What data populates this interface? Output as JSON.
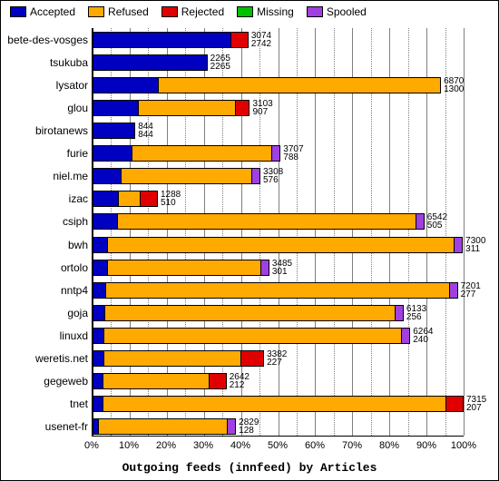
{
  "title": "Outgoing feeds (innfeed) by Articles",
  "colors": {
    "accepted": "#0000c0",
    "refused": "#ffaa00",
    "rejected": "#e00000",
    "missing": "#00c000",
    "spooled": "#a040e0",
    "grid": "#7f7f7f",
    "border": "#000000",
    "bg": "#ffffff"
  },
  "legend": [
    {
      "key": "accepted",
      "label": "Accepted"
    },
    {
      "key": "refused",
      "label": "Refused"
    },
    {
      "key": "rejected",
      "label": "Rejected"
    },
    {
      "key": "missing",
      "label": "Missing"
    },
    {
      "key": "spooled",
      "label": "Spooled"
    }
  ],
  "axis": {
    "x_title": "Outgoing feeds (innfeed) by Articles",
    "x_ticks_pct": [
      0,
      10,
      20,
      30,
      40,
      50,
      60,
      70,
      80,
      90,
      100
    ],
    "x_minor_pct": [
      5,
      15,
      25,
      35,
      45,
      55,
      65,
      75,
      85,
      95
    ],
    "x_tick_suffix": "%"
  },
  "bar_max": 7315,
  "rows": [
    {
      "name": "bete-des-vosges",
      "accepted": 2742,
      "refused": 0,
      "rejected": 332,
      "missing": 0,
      "spooled": 0,
      "label_top": 3074,
      "label_bot": 2742
    },
    {
      "name": "tsukuba",
      "accepted": 2265,
      "refused": 0,
      "rejected": 0,
      "missing": 0,
      "spooled": 0,
      "label_top": 2265,
      "label_bot": 2265
    },
    {
      "name": "lysator",
      "accepted": 1300,
      "refused": 5570,
      "rejected": 0,
      "missing": 0,
      "spooled": 0,
      "label_top": 6870,
      "label_bot": 1300
    },
    {
      "name": "glou",
      "accepted": 907,
      "refused": 1926,
      "rejected": 270,
      "missing": 0,
      "spooled": 0,
      "label_top": 3103,
      "label_bot": 907
    },
    {
      "name": "birotanews",
      "accepted": 844,
      "refused": 0,
      "rejected": 0,
      "missing": 0,
      "spooled": 0,
      "label_top": 844,
      "label_bot": 844
    },
    {
      "name": "furie",
      "accepted": 788,
      "refused": 2759,
      "rejected": 0,
      "missing": 0,
      "spooled": 160,
      "label_top": 3707,
      "label_bot": 788
    },
    {
      "name": "niel.me",
      "accepted": 576,
      "refused": 2572,
      "rejected": 0,
      "missing": 0,
      "spooled": 160,
      "label_top": 3308,
      "label_bot": 576
    },
    {
      "name": "izac",
      "accepted": 510,
      "refused": 438,
      "rejected": 340,
      "missing": 0,
      "spooled": 0,
      "label_top": 1288,
      "label_bot": 510
    },
    {
      "name": "csiph",
      "accepted": 505,
      "refused": 5877,
      "rejected": 0,
      "missing": 0,
      "spooled": 160,
      "label_top": 6542,
      "label_bot": 505
    },
    {
      "name": "bwh",
      "accepted": 311,
      "refused": 6829,
      "rejected": 0,
      "missing": 0,
      "spooled": 160,
      "label_top": 7300,
      "label_bot": 311
    },
    {
      "name": "ortolo",
      "accepted": 301,
      "refused": 3024,
      "rejected": 0,
      "missing": 0,
      "spooled": 160,
      "label_top": 3485,
      "label_bot": 301
    },
    {
      "name": "nntp4",
      "accepted": 277,
      "refused": 6764,
      "rejected": 0,
      "missing": 0,
      "spooled": 160,
      "label_top": 7201,
      "label_bot": 277
    },
    {
      "name": "goja",
      "accepted": 256,
      "refused": 5717,
      "rejected": 0,
      "missing": 0,
      "spooled": 160,
      "label_top": 6133,
      "label_bot": 256
    },
    {
      "name": "linuxd",
      "accepted": 240,
      "refused": 5864,
      "rejected": 0,
      "missing": 0,
      "spooled": 160,
      "label_top": 6264,
      "label_bot": 240
    },
    {
      "name": "weretis.net",
      "accepted": 227,
      "refused": 2715,
      "rejected": 440,
      "missing": 0,
      "spooled": 0,
      "label_top": 3382,
      "label_bot": 227
    },
    {
      "name": "gegeweb",
      "accepted": 212,
      "refused": 2100,
      "rejected": 330,
      "missing": 0,
      "spooled": 0,
      "label_top": 2642,
      "label_bot": 212
    },
    {
      "name": "tnet",
      "accepted": 207,
      "refused": 6768,
      "rejected": 340,
      "missing": 0,
      "spooled": 0,
      "label_top": 7315,
      "label_bot": 207
    },
    {
      "name": "usenet-fr",
      "accepted": 128,
      "refused": 2541,
      "rejected": 0,
      "missing": 0,
      "spooled": 160,
      "label_top": 2829,
      "label_bot": 128
    }
  ]
}
